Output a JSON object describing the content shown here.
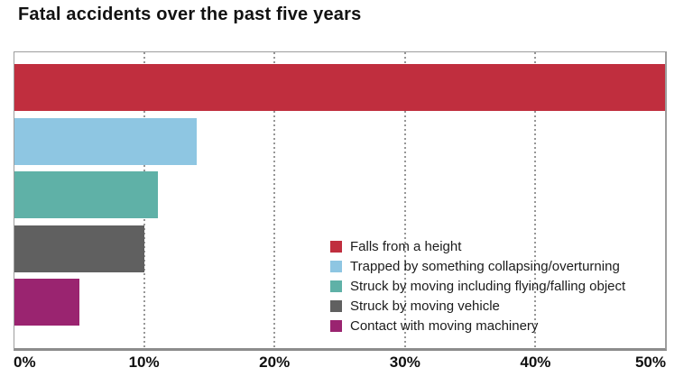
{
  "chart_data": {
    "type": "bar",
    "orientation": "horizontal",
    "title": "Fatal accidents over the past five years",
    "categories": [
      "Falls from a height",
      "Trapped by something collapsing/overturning",
      "Struck by moving including flying/falling object",
      "Struck by moving vehicle",
      "Contact with moving machinery"
    ],
    "values": [
      50,
      14,
      11,
      10,
      5
    ],
    "unit": "%",
    "colors": [
      "#c02e3e",
      "#8ec6e2",
      "#5fb1a7",
      "#606060",
      "#9a2470"
    ],
    "xlabel": "",
    "ylabel": "",
    "xlim": [
      0,
      50
    ],
    "xticks": [
      {
        "value": 0,
        "label": "0%"
      },
      {
        "value": 10,
        "label": "10%"
      },
      {
        "value": 20,
        "label": "20%"
      },
      {
        "value": 30,
        "label": "30%"
      },
      {
        "value": 40,
        "label": "40%"
      },
      {
        "value": 50,
        "label": "50%"
      }
    ],
    "grid": "vertical-dotted",
    "gridline_color": "#979797",
    "legend_position": "inside-bottom-right",
    "legend_entries": [
      {
        "label": "Falls from a height",
        "color": "#c02e3e"
      },
      {
        "label": "Trapped by something collapsing/overturning",
        "color": "#8ec6e2"
      },
      {
        "label": "Struck by moving including flying/falling object",
        "color": "#5fb1a7"
      },
      {
        "label": "Struck by moving vehicle",
        "color": "#606060"
      },
      {
        "label": "Contact with moving machinery",
        "color": "#9a2470"
      }
    ]
  }
}
